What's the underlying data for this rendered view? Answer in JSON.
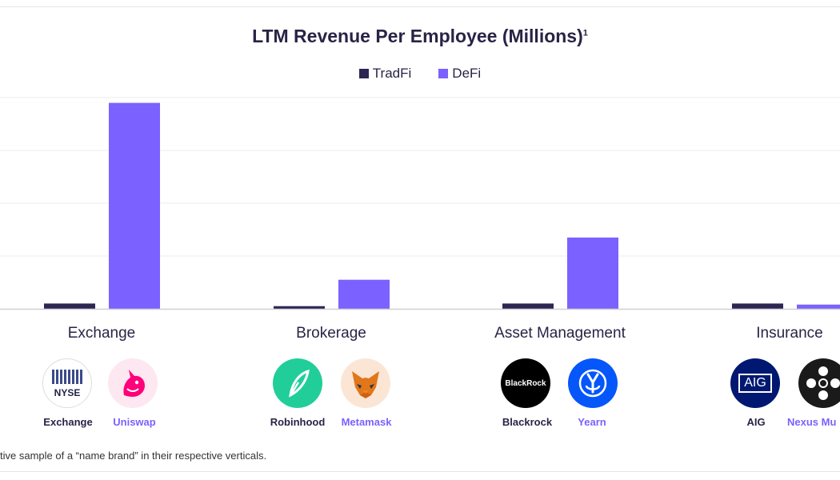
{
  "colors": {
    "tradfi": "#2d2552",
    "defi": "#7b61ff",
    "text": "#2a2346"
  },
  "chart_data": {
    "type": "bar",
    "title": "LTM Revenue Per Employee (Millions)",
    "title_superscript": "1",
    "categories": [
      "Exchange",
      "Brokerage",
      "Asset Management",
      "Insurance"
    ],
    "series": [
      {
        "name": "TradFi",
        "values": [
          0.1,
          0.05,
          0.1,
          0.1
        ]
      },
      {
        "name": "DeFi",
        "values": [
          3.9,
          0.55,
          1.35,
          0.08
        ]
      }
    ],
    "ylim": [
      0,
      4
    ],
    "grid": true,
    "legend": "top-center",
    "xlabel": "",
    "ylabel": ""
  },
  "logos": [
    {
      "category": "Exchange",
      "tradfi": {
        "name": "Exchange",
        "mark": "NYSE"
      },
      "defi": {
        "name": "Uniswap",
        "mark": "unicorn"
      }
    },
    {
      "category": "Brokerage",
      "tradfi": {
        "name": "Robinhood",
        "mark": "feather"
      },
      "defi": {
        "name": "Metamask",
        "mark": "fox"
      }
    },
    {
      "category": "Asset Management",
      "tradfi": {
        "name": "Blackrock",
        "mark": "BlackRock"
      },
      "defi": {
        "name": "Yearn",
        "mark": "yearn"
      }
    },
    {
      "category": "Insurance",
      "tradfi": {
        "name": "AIG",
        "mark": "AIG"
      },
      "defi": {
        "name": "Nexus Mu",
        "mark": "nexus"
      }
    }
  ],
  "footnote": "tive sample of a “name brand” in their respective verticals."
}
